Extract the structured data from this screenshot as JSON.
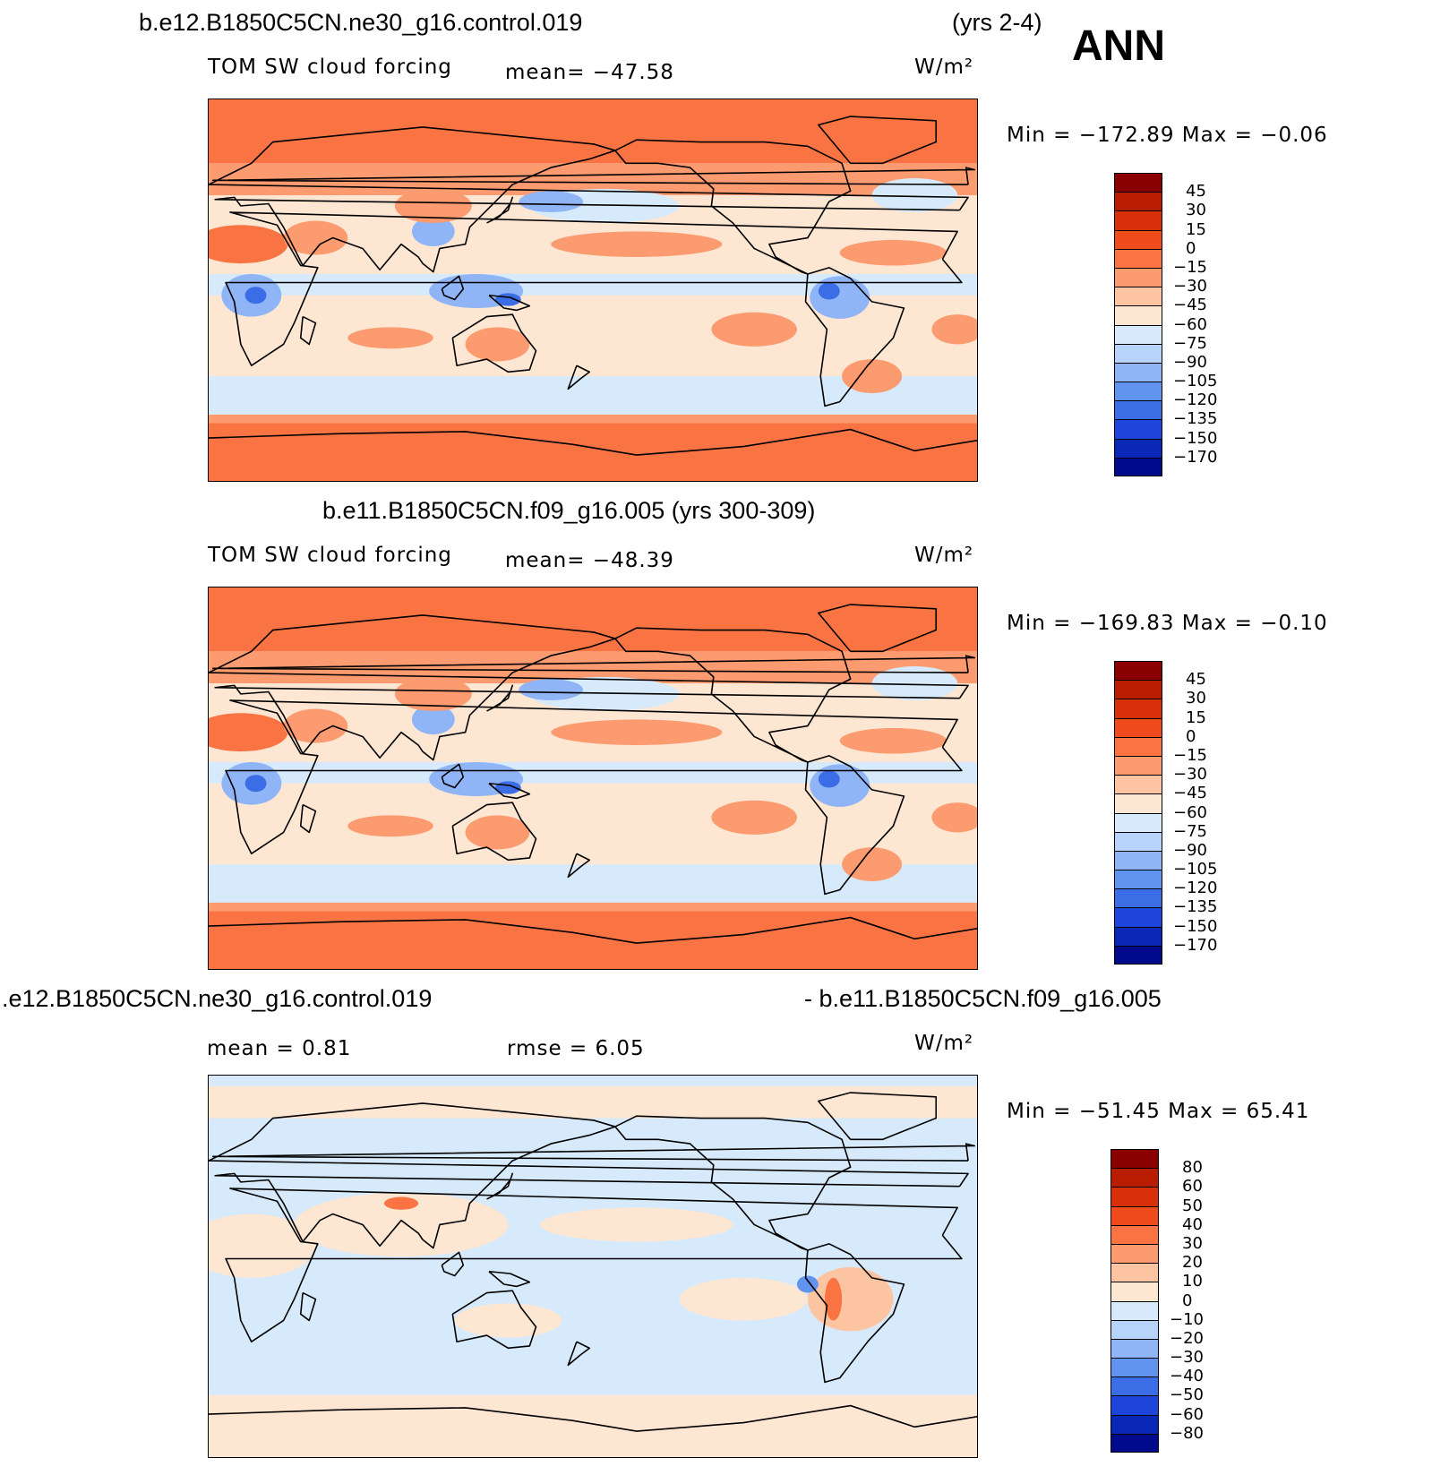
{
  "season": "ANN",
  "units_label": "W/m²",
  "panels": [
    {
      "title": "b.e12.B1850C5CN.ne30_g16.control.019",
      "years": "(yrs 2-4)",
      "variable": "TOM SW cloud forcing",
      "mean_text": "mean= −47.58",
      "minmax_text": "Min = −172.89  Max =   −0.06",
      "colorbar_labels": [
        "45",
        "30",
        "15",
        "0",
        "−15",
        "−30",
        "−45",
        "−60",
        "−75",
        "−90",
        "−105",
        "−120",
        "−135",
        "−150",
        "−170"
      ],
      "colorbar_colors": [
        "#8b0000",
        "#b81d00",
        "#d9300a",
        "#f04b1c",
        "#f97442",
        "#fb9b6f",
        "#fdc4a2",
        "#fde6d2",
        "#d7eafb",
        "#b8d3fa",
        "#8fb5f6",
        "#6194ef",
        "#3b6de6",
        "#1d45dc",
        "#0a28b8",
        "#000a8a"
      ],
      "palette": {
        "base": "#fde6d2",
        "ocean_light": "#d7eafb",
        "warm": "#fb9b6f",
        "hot": "#f97442",
        "cool": "#8fb5f6",
        "deep": "#3b6de6"
      }
    },
    {
      "title": "b.e11.B1850C5CN.f09_g16.005 (yrs 300-309)",
      "variable": "TOM SW cloud forcing",
      "mean_text": "mean= −48.39",
      "minmax_text": "Min = −169.83  Max =   −0.10",
      "colorbar_labels": [
        "45",
        "30",
        "15",
        "0",
        "−15",
        "−30",
        "−45",
        "−60",
        "−75",
        "−90",
        "−105",
        "−120",
        "−135",
        "−150",
        "−170"
      ],
      "colorbar_colors": [
        "#8b0000",
        "#b81d00",
        "#d9300a",
        "#f04b1c",
        "#f97442",
        "#fb9b6f",
        "#fdc4a2",
        "#fde6d2",
        "#d7eafb",
        "#b8d3fa",
        "#8fb5f6",
        "#6194ef",
        "#3b6de6",
        "#1d45dc",
        "#0a28b8",
        "#000a8a"
      ],
      "palette": {
        "base": "#fde6d2",
        "ocean_light": "#d7eafb",
        "warm": "#fb9b6f",
        "hot": "#f97442",
        "cool": "#8fb5f6",
        "deep": "#3b6de6"
      }
    },
    {
      "title_left": ".e12.B1850C5CN.ne30_g16.control.019",
      "title_right": "- b.e11.B1850C5CN.f09_g16.005",
      "mean_text": "mean =    0.81",
      "rmse_text": "rmse =    6.05",
      "minmax_text": "Min = −51.45  Max =   65.41",
      "colorbar_labels": [
        "80",
        "60",
        "50",
        "40",
        "30",
        "20",
        "10",
        "0",
        "−10",
        "−20",
        "−30",
        "−40",
        "−50",
        "−60",
        "−80"
      ],
      "colorbar_colors": [
        "#8b0000",
        "#b81d00",
        "#d9300a",
        "#f04b1c",
        "#f97442",
        "#fb9b6f",
        "#fdc4a2",
        "#fde6d2",
        "#d7eafb",
        "#b8d3fa",
        "#8fb5f6",
        "#6194ef",
        "#3b6de6",
        "#1d45dc",
        "#0a28b8",
        "#000a8a"
      ],
      "palette": {
        "base": "#fde6d2",
        "ocean_light": "#d7eafb",
        "warm": "#fdc4a2",
        "hot": "#f97442",
        "cool": "#b8d3fa",
        "deep": "#6194ef"
      }
    }
  ]
}
